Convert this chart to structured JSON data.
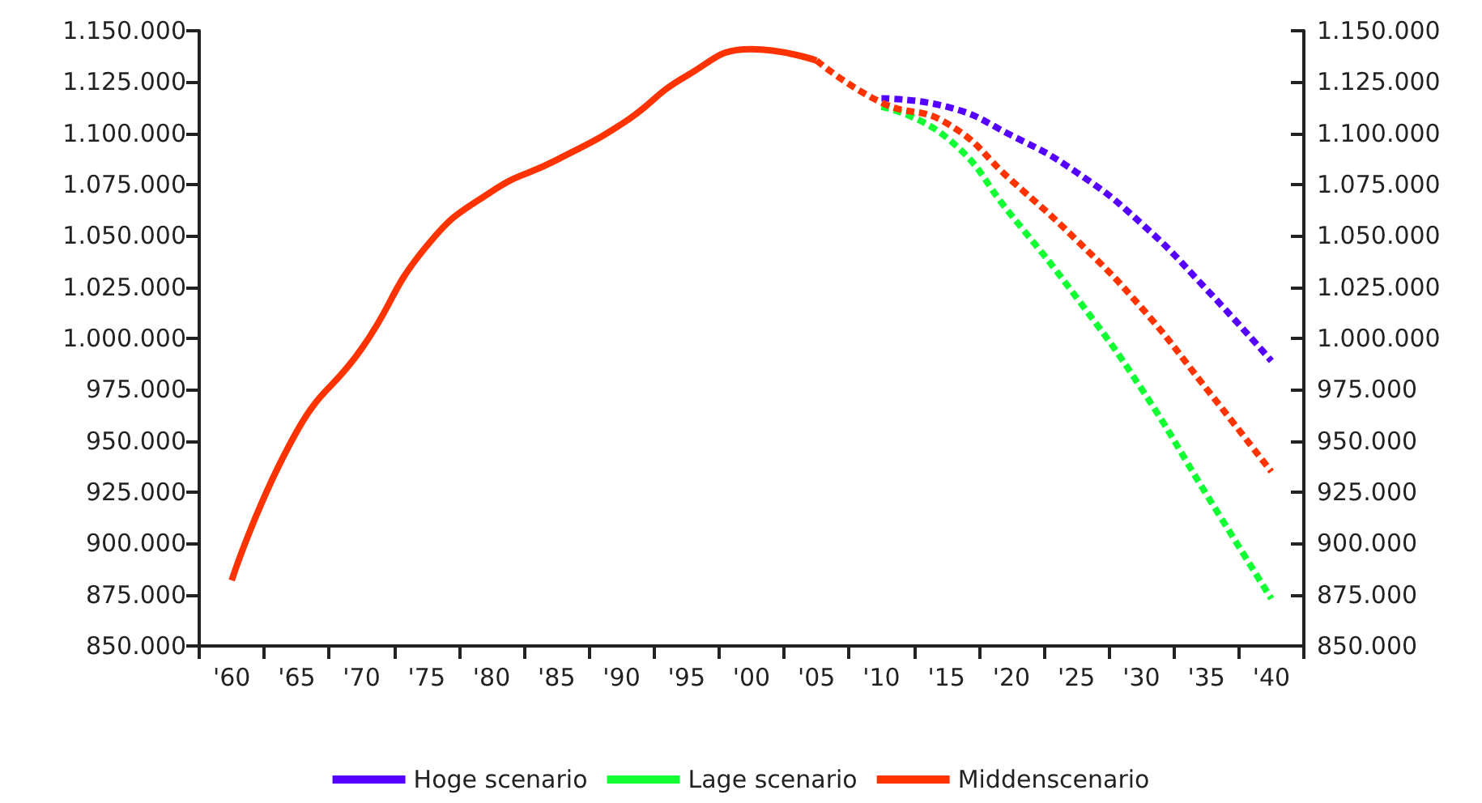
{
  "chart_data": {
    "type": "line",
    "categories": [
      "'60",
      "'65",
      "'70",
      "'75",
      "'80",
      "'85",
      "'90",
      "'95",
      "'00",
      "'05",
      "'10",
      "'15",
      "'20",
      "'25",
      "'30",
      "'35",
      "'40"
    ],
    "series": [
      {
        "name": "Hoge scenario",
        "color": "#5500ff",
        "line_style": "dashed",
        "values": [
          null,
          null,
          null,
          null,
          null,
          null,
          null,
          null,
          null,
          null,
          1117000,
          1113000,
          1099000,
          1081000,
          1056000,
          1024000,
          989000
        ]
      },
      {
        "name": "Lage scenario",
        "color": "#11ff33",
        "line_style": "dashed",
        "values": [
          null,
          null,
          null,
          null,
          null,
          null,
          null,
          null,
          null,
          null,
          1113000,
          1098000,
          1060000,
          1020000,
          975500,
          924000,
          873000
        ]
      },
      {
        "name": "Middenscenario",
        "color": "#ff3300",
        "line_style": "solid",
        "values": [
          882000,
          954500,
          995000,
          1045000,
          1071600,
          1087000,
          1104500,
          1128000,
          1141000,
          1135500,
          null,
          null,
          null,
          null,
          null,
          null,
          null
        ]
      },
      {
        "color": "#ff3300",
        "line_style": "dashed",
        "values": [
          null,
          null,
          null,
          null,
          null,
          null,
          null,
          null,
          null,
          1135500,
          1115000,
          1105000,
          1077000,
          1048000,
          1015000,
          975500,
          935000
        ]
      }
    ],
    "ylim": [
      850000,
      1150000
    ],
    "yticks": [
      {
        "value": 850000,
        "label": "850.000"
      },
      {
        "value": 875000,
        "label": "875.000"
      },
      {
        "value": 900000,
        "label": "900.000"
      },
      {
        "value": 925000,
        "label": "925.000"
      },
      {
        "value": 950000,
        "label": "950.000"
      },
      {
        "value": 975000,
        "label": "975.000"
      },
      {
        "value": 1000000,
        "label": "1.000.000"
      },
      {
        "value": 1025000,
        "label": "1.025.000"
      },
      {
        "value": 1050000,
        "label": "1.050.000"
      },
      {
        "value": 1075000,
        "label": "1.075.000"
      },
      {
        "value": 1100000,
        "label": "1.100.000"
      },
      {
        "value": 1125000,
        "label": "1.125.000"
      },
      {
        "value": 1150000,
        "label": "1.150.000"
      }
    ],
    "y2lim": [
      850000,
      1150000
    ],
    "y2ticks": [
      {
        "value": 850000,
        "label": "850.000"
      },
      {
        "value": 875000,
        "label": "875.000"
      },
      {
        "value": 900000,
        "label": "900.000"
      },
      {
        "value": 925000,
        "label": "925.000"
      },
      {
        "value": 950000,
        "label": "950.000"
      },
      {
        "value": 975000,
        "label": "975.000"
      },
      {
        "value": 1000000,
        "label": "1.000.000"
      },
      {
        "value": 1025000,
        "label": "1.025.000"
      },
      {
        "value": 1050000,
        "label": "1.050.000"
      },
      {
        "value": 1075000,
        "label": "1.075.000"
      },
      {
        "value": 1100000,
        "label": "1.100.000"
      },
      {
        "value": 1125000,
        "label": "1.125.000"
      },
      {
        "value": 1150000,
        "label": "1.150.000"
      }
    ],
    "legend": "bottom",
    "grid": false,
    "marker": "none"
  }
}
